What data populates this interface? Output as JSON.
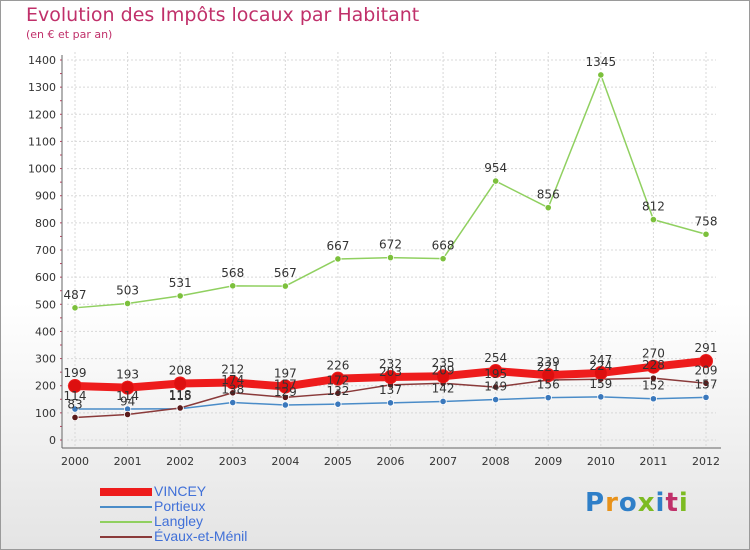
{
  "title": "Evolution des Impôts locaux par Habitant",
  "subtitle": "(en € et par an)",
  "logo": {
    "text": "Proxiti",
    "letter_colors": [
      "#2f7fc8",
      "#e8921a",
      "#2f7fc8",
      "#7dbb22",
      "#2f7fc8",
      "#c0306a",
      "#7dbb22"
    ]
  },
  "chart_data": {
    "type": "line",
    "x": [
      "2000",
      "2001",
      "2002",
      "2003",
      "2004",
      "2005",
      "2006",
      "2007",
      "2008",
      "2009",
      "2010",
      "2011",
      "2012"
    ],
    "ylim": [
      0,
      1400
    ],
    "yticks": [
      "0",
      "100",
      "200",
      "300",
      "400",
      "500",
      "600",
      "700",
      "800",
      "900",
      "1000",
      "1100",
      "1200",
      "1300",
      "1400"
    ],
    "grid": true,
    "legend_position": "bottom-left",
    "series": [
      {
        "name": "Portieux",
        "color": "#4a8cc8",
        "marker_color": "#3a78bc",
        "line_width": 1.5,
        "values": [
          114,
          114,
          115,
          138,
          129,
          132,
          137,
          142,
          149,
          156,
          159,
          152,
          157
        ],
        "labels": [
          "114",
          "114",
          "115",
          "138",
          "129",
          "132",
          "137",
          "142",
          "149",
          "156",
          "159",
          "152",
          "157"
        ]
      },
      {
        "name": "Évaux-et-Ménil",
        "color": "#8a3a3a",
        "marker_color": "#5a1a1a",
        "line_width": 1.5,
        "values": [
          83,
          94,
          118,
          174,
          157,
          172,
          203,
          209,
          195,
          221,
          224,
          228,
          209
        ],
        "labels": [
          "83",
          "94",
          "118",
          "174",
          "157",
          "172",
          "203",
          "209",
          "195",
          "221",
          "224",
          "228",
          "209"
        ]
      },
      {
        "name": "Langley",
        "color": "#90d060",
        "marker_color": "#7cc03c",
        "line_width": 1.5,
        "values": [
          487,
          503,
          531,
          568,
          567,
          667,
          672,
          668,
          954,
          856,
          1345,
          812,
          758
        ],
        "labels": [
          "487",
          "503",
          "531",
          "568",
          "567",
          "667",
          "672",
          "668",
          "954",
          "856",
          "1345",
          "812",
          "758"
        ]
      },
      {
        "name": "VINCEY",
        "color": "#ee1c1c",
        "marker_color": "#dd0f0f",
        "line_width": 8,
        "values": [
          199,
          193,
          208,
          212,
          197,
          226,
          232,
          235,
          254,
          239,
          247,
          270,
          291
        ],
        "labels": [
          "199",
          "193",
          "208",
          "212",
          "197",
          "226",
          "232",
          "235",
          "254",
          "239",
          "247",
          "270",
          "291"
        ]
      }
    ],
    "legend_order": [
      "VINCEY",
      "Portieux",
      "Langley",
      "Évaux-et-Ménil"
    ]
  }
}
